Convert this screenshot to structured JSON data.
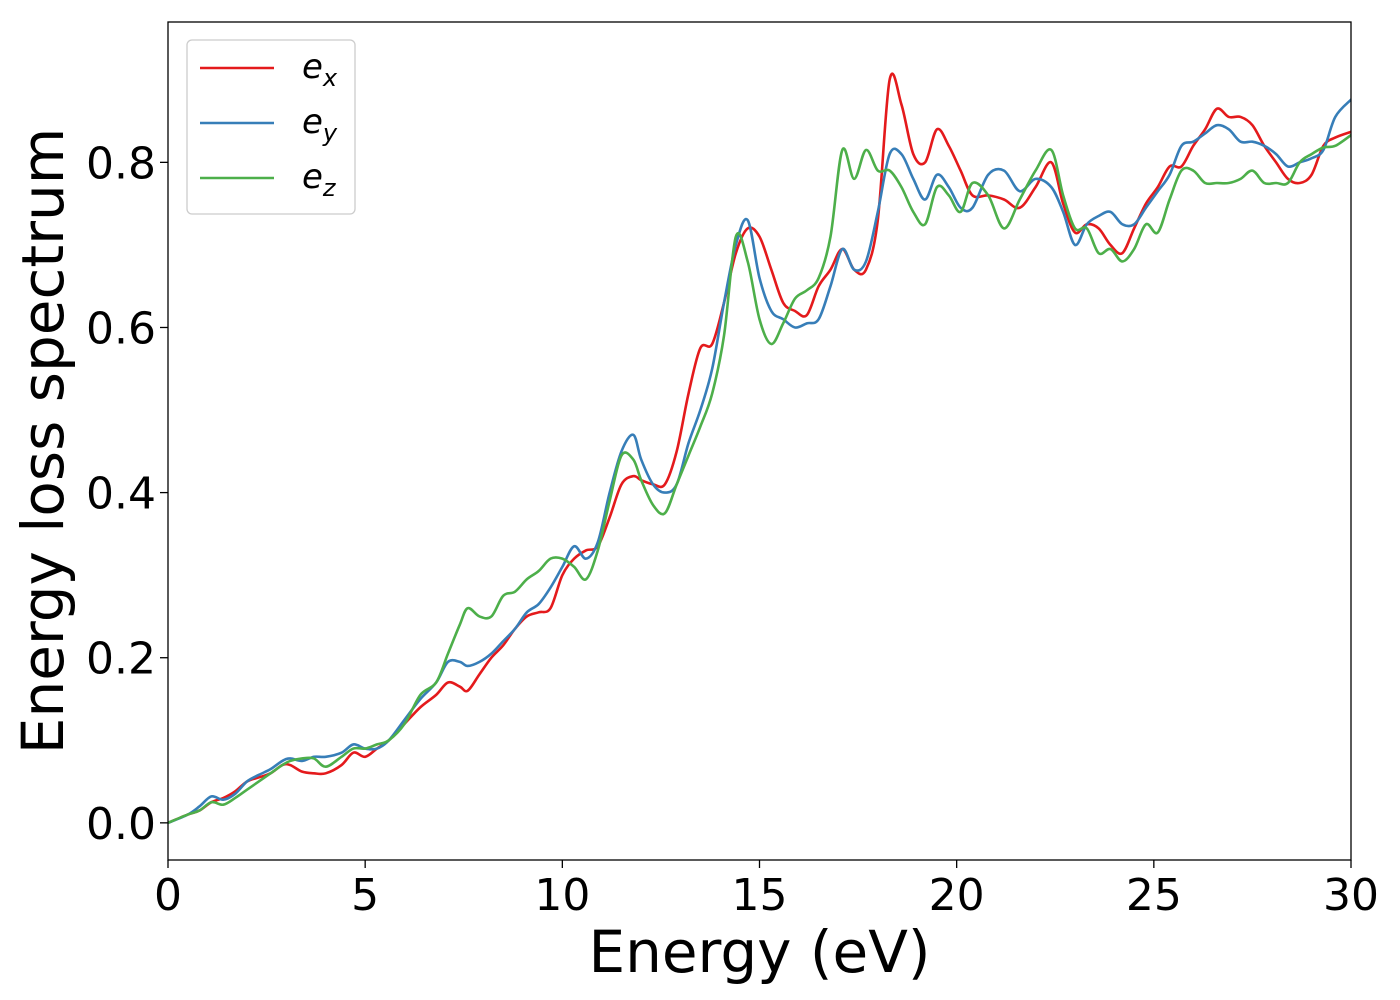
{
  "chart_data": {
    "type": "line",
    "title": "",
    "xlabel": "Energy (eV)",
    "ylabel": "Energy loss spectrum",
    "xlim": [
      0,
      30
    ],
    "ylim": [
      -0.045,
      0.97
    ],
    "xticks": [
      0,
      5,
      10,
      15,
      20,
      25,
      30
    ],
    "xtick_labels": [
      "0",
      "5",
      "10",
      "15",
      "20",
      "25",
      "30"
    ],
    "yticks": [
      0.0,
      0.2,
      0.4,
      0.6,
      0.8
    ],
    "ytick_labels": [
      "0.0",
      "0.2",
      "0.4",
      "0.6",
      "0.8"
    ],
    "grid": false,
    "legend_position": "top-left",
    "series": [
      {
        "name": "e",
        "subscript": "x",
        "color": "#e41a1c",
        "x": [
          0,
          0.5,
          0.8,
          1.1,
          1.4,
          1.7,
          2.0,
          2.3,
          2.6,
          2.9,
          3.1,
          3.4,
          3.7,
          4.0,
          4.4,
          4.7,
          5.0,
          5.3,
          5.6,
          6.0,
          6.4,
          6.8,
          7.1,
          7.4,
          7.6,
          7.9,
          8.2,
          8.5,
          8.8,
          9.1,
          9.4,
          9.7,
          10.0,
          10.3,
          10.6,
          10.9,
          11.2,
          11.5,
          11.8,
          12.0,
          12.3,
          12.6,
          12.9,
          13.2,
          13.5,
          13.8,
          14.1,
          14.4,
          14.7,
          15.0,
          15.3,
          15.6,
          15.9,
          16.2,
          16.5,
          16.8,
          17.1,
          17.4,
          17.7,
          18.0,
          18.3,
          18.6,
          18.9,
          19.2,
          19.5,
          19.8,
          20.1,
          20.4,
          20.8,
          21.2,
          21.6,
          22.0,
          22.4,
          22.7,
          23.0,
          23.3,
          23.6,
          23.9,
          24.2,
          24.5,
          24.8,
          25.1,
          25.4,
          25.7,
          26.0,
          26.3,
          26.6,
          26.9,
          27.2,
          27.5,
          27.8,
          28.1,
          28.4,
          28.7,
          29.0,
          29.3,
          29.6,
          30.0
        ],
        "y": [
          0.0,
          0.01,
          0.015,
          0.025,
          0.03,
          0.038,
          0.05,
          0.055,
          0.06,
          0.07,
          0.07,
          0.062,
          0.06,
          0.06,
          0.07,
          0.085,
          0.08,
          0.09,
          0.1,
          0.12,
          0.14,
          0.155,
          0.17,
          0.165,
          0.16,
          0.18,
          0.2,
          0.215,
          0.235,
          0.25,
          0.255,
          0.26,
          0.3,
          0.32,
          0.33,
          0.335,
          0.37,
          0.41,
          0.42,
          0.415,
          0.41,
          0.41,
          0.45,
          0.52,
          0.575,
          0.58,
          0.63,
          0.69,
          0.72,
          0.71,
          0.67,
          0.63,
          0.62,
          0.615,
          0.65,
          0.67,
          0.695,
          0.67,
          0.67,
          0.73,
          0.9,
          0.87,
          0.81,
          0.8,
          0.84,
          0.82,
          0.79,
          0.76,
          0.76,
          0.755,
          0.745,
          0.77,
          0.8,
          0.75,
          0.715,
          0.725,
          0.72,
          0.7,
          0.69,
          0.72,
          0.75,
          0.77,
          0.795,
          0.795,
          0.82,
          0.84,
          0.865,
          0.855,
          0.855,
          0.845,
          0.82,
          0.8,
          0.78,
          0.775,
          0.785,
          0.82,
          0.83,
          0.837
        ]
      },
      {
        "name": "e",
        "subscript": "y",
        "color": "#377eb8",
        "x": [
          0,
          0.5,
          0.8,
          1.1,
          1.4,
          1.7,
          2.0,
          2.3,
          2.6,
          2.9,
          3.1,
          3.4,
          3.7,
          4.0,
          4.4,
          4.7,
          5.0,
          5.3,
          5.6,
          6.0,
          6.4,
          6.8,
          7.1,
          7.4,
          7.6,
          7.9,
          8.2,
          8.5,
          8.8,
          9.1,
          9.4,
          9.7,
          10.0,
          10.3,
          10.6,
          10.9,
          11.2,
          11.5,
          11.8,
          12.0,
          12.3,
          12.6,
          12.9,
          13.2,
          13.5,
          13.8,
          14.1,
          14.4,
          14.7,
          15.0,
          15.3,
          15.6,
          15.9,
          16.2,
          16.5,
          16.8,
          17.1,
          17.4,
          17.7,
          18.0,
          18.3,
          18.6,
          18.9,
          19.2,
          19.5,
          19.8,
          20.1,
          20.4,
          20.8,
          21.2,
          21.6,
          22.0,
          22.4,
          22.7,
          23.0,
          23.3,
          23.6,
          23.9,
          24.2,
          24.5,
          24.8,
          25.1,
          25.4,
          25.7,
          26.0,
          26.3,
          26.6,
          26.9,
          27.2,
          27.5,
          27.8,
          28.1,
          28.4,
          28.7,
          29.0,
          29.3,
          29.6,
          30.0
        ],
        "y": [
          0.0,
          0.01,
          0.02,
          0.032,
          0.028,
          0.035,
          0.05,
          0.058,
          0.065,
          0.075,
          0.078,
          0.075,
          0.08,
          0.08,
          0.085,
          0.095,
          0.09,
          0.09,
          0.1,
          0.125,
          0.15,
          0.17,
          0.195,
          0.195,
          0.19,
          0.195,
          0.205,
          0.22,
          0.235,
          0.255,
          0.265,
          0.285,
          0.31,
          0.335,
          0.32,
          0.34,
          0.4,
          0.45,
          0.47,
          0.44,
          0.41,
          0.4,
          0.41,
          0.46,
          0.5,
          0.55,
          0.63,
          0.7,
          0.73,
          0.66,
          0.62,
          0.61,
          0.6,
          0.605,
          0.61,
          0.65,
          0.695,
          0.67,
          0.68,
          0.74,
          0.81,
          0.81,
          0.78,
          0.755,
          0.785,
          0.77,
          0.745,
          0.745,
          0.785,
          0.79,
          0.765,
          0.78,
          0.77,
          0.74,
          0.7,
          0.725,
          0.735,
          0.74,
          0.725,
          0.725,
          0.745,
          0.765,
          0.785,
          0.82,
          0.825,
          0.835,
          0.845,
          0.84,
          0.825,
          0.825,
          0.82,
          0.81,
          0.795,
          0.8,
          0.805,
          0.815,
          0.855,
          0.876
        ]
      },
      {
        "name": "e",
        "subscript": "z",
        "color": "#4daf4a",
        "x": [
          0,
          0.5,
          0.8,
          1.1,
          1.4,
          1.7,
          2.0,
          2.3,
          2.6,
          2.9,
          3.1,
          3.4,
          3.7,
          4.0,
          4.4,
          4.7,
          5.0,
          5.3,
          5.6,
          6.0,
          6.4,
          6.8,
          7.1,
          7.4,
          7.6,
          7.9,
          8.2,
          8.5,
          8.8,
          9.1,
          9.4,
          9.7,
          10.0,
          10.3,
          10.6,
          10.9,
          11.2,
          11.5,
          11.8,
          12.0,
          12.3,
          12.6,
          12.9,
          13.2,
          13.5,
          13.8,
          14.1,
          14.4,
          14.7,
          15.0,
          15.3,
          15.6,
          15.9,
          16.2,
          16.5,
          16.8,
          17.1,
          17.4,
          17.7,
          18.0,
          18.3,
          18.6,
          18.9,
          19.2,
          19.5,
          19.8,
          20.1,
          20.4,
          20.8,
          21.2,
          21.6,
          22.0,
          22.4,
          22.7,
          23.0,
          23.3,
          23.6,
          23.9,
          24.2,
          24.5,
          24.8,
          25.1,
          25.4,
          25.7,
          26.0,
          26.3,
          26.6,
          26.9,
          27.2,
          27.5,
          27.8,
          28.1,
          28.4,
          28.7,
          29.0,
          29.3,
          29.6,
          30.0
        ],
        "y": [
          0.0,
          0.01,
          0.015,
          0.025,
          0.022,
          0.03,
          0.04,
          0.05,
          0.06,
          0.07,
          0.075,
          0.078,
          0.078,
          0.068,
          0.08,
          0.09,
          0.09,
          0.095,
          0.1,
          0.12,
          0.155,
          0.17,
          0.205,
          0.24,
          0.26,
          0.25,
          0.25,
          0.275,
          0.28,
          0.295,
          0.305,
          0.32,
          0.32,
          0.31,
          0.295,
          0.33,
          0.39,
          0.445,
          0.44,
          0.415,
          0.385,
          0.375,
          0.41,
          0.445,
          0.48,
          0.52,
          0.59,
          0.71,
          0.68,
          0.61,
          0.58,
          0.605,
          0.635,
          0.645,
          0.66,
          0.71,
          0.815,
          0.78,
          0.815,
          0.79,
          0.79,
          0.77,
          0.74,
          0.725,
          0.77,
          0.76,
          0.74,
          0.775,
          0.76,
          0.72,
          0.755,
          0.79,
          0.815,
          0.76,
          0.72,
          0.72,
          0.69,
          0.695,
          0.68,
          0.695,
          0.725,
          0.715,
          0.755,
          0.79,
          0.79,
          0.775,
          0.775,
          0.775,
          0.78,
          0.79,
          0.775,
          0.775,
          0.775,
          0.8,
          0.81,
          0.818,
          0.82,
          0.833
        ]
      }
    ]
  }
}
